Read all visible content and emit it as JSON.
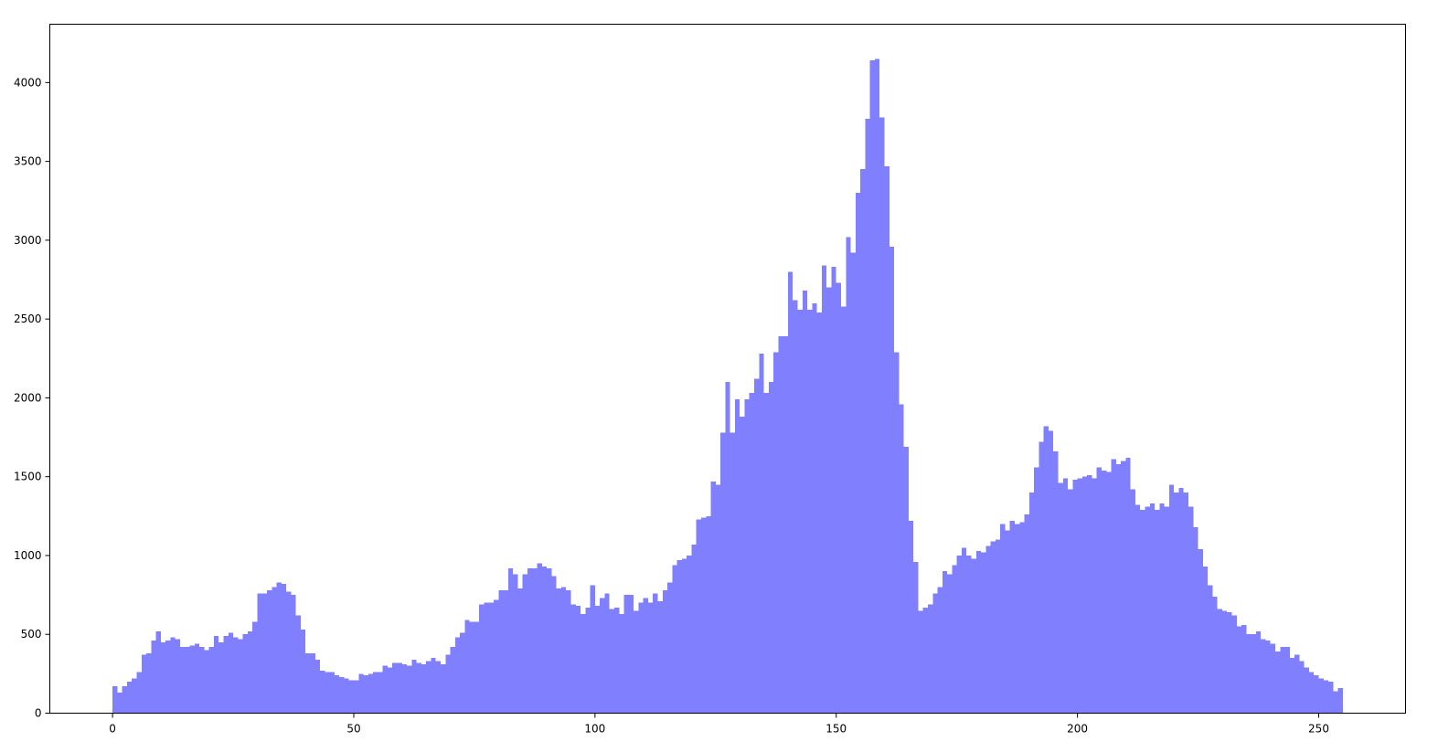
{
  "chart_data": {
    "type": "bar",
    "title": "",
    "xlabel": "",
    "ylabel": "",
    "bar_color": "#8080ff",
    "bin_start": 0,
    "bin_width": 1,
    "xlim": [
      -13,
      268
    ],
    "ylim": [
      0,
      4370
    ],
    "grid": false,
    "legend": "none",
    "xticks": [
      {
        "value": 0,
        "label": "0"
      },
      {
        "value": 50,
        "label": "50"
      },
      {
        "value": 100,
        "label": "100"
      },
      {
        "value": 150,
        "label": "150"
      },
      {
        "value": 200,
        "label": "200"
      },
      {
        "value": 250,
        "label": "250"
      }
    ],
    "yticks": [
      {
        "value": 0,
        "label": "0"
      },
      {
        "value": 500,
        "label": "500"
      },
      {
        "value": 1000,
        "label": "1000"
      },
      {
        "value": 1500,
        "label": "1500"
      },
      {
        "value": 2000,
        "label": "2000"
      },
      {
        "value": 2500,
        "label": "2500"
      },
      {
        "value": 3000,
        "label": "3000"
      },
      {
        "value": 3500,
        "label": "3500"
      },
      {
        "value": 4000,
        "label": "4000"
      }
    ],
    "values": [
      170,
      130,
      170,
      200,
      220,
      260,
      370,
      380,
      460,
      520,
      450,
      460,
      480,
      470,
      420,
      420,
      430,
      440,
      420,
      400,
      420,
      490,
      450,
      490,
      510,
      480,
      470,
      500,
      520,
      580,
      760,
      760,
      780,
      800,
      830,
      820,
      770,
      750,
      620,
      530,
      380,
      380,
      340,
      270,
      260,
      260,
      240,
      230,
      220,
      210,
      210,
      250,
      240,
      250,
      260,
      260,
      300,
      290,
      320,
      320,
      310,
      300,
      340,
      320,
      310,
      330,
      350,
      330,
      310,
      370,
      420,
      480,
      510,
      590,
      580,
      580,
      690,
      700,
      700,
      720,
      780,
      780,
      920,
      880,
      790,
      880,
      920,
      920,
      950,
      930,
      920,
      870,
      790,
      800,
      780,
      690,
      680,
      630,
      670,
      810,
      680,
      730,
      760,
      660,
      670,
      630,
      750,
      750,
      650,
      700,
      730,
      700,
      760,
      710,
      780,
      830,
      940,
      970,
      980,
      1000,
      1070,
      1230,
      1240,
      1250,
      1470,
      1450,
      1780,
      2100,
      1780,
      1990,
      1880,
      1990,
      2030,
      2120,
      2280,
      2030,
      2100,
      2290,
      2390,
      2390,
      2800,
      2620,
      2560,
      2680,
      2560,
      2600,
      2540,
      2840,
      2700,
      2830,
      2730,
      2580,
      3020,
      2920,
      3300,
      3450,
      3770,
      4140,
      4150,
      3780,
      3470,
      2960,
      2290,
      1960,
      1690,
      1220,
      960,
      650,
      670,
      690,
      760,
      800,
      900,
      880,
      940,
      1000,
      1050,
      1000,
      980,
      1030,
      1020,
      1060,
      1090,
      1100,
      1200,
      1160,
      1220,
      1200,
      1210,
      1260,
      1400,
      1560,
      1720,
      1820,
      1790,
      1660,
      1460,
      1490,
      1420,
      1480,
      1490,
      1500,
      1510,
      1490,
      1560,
      1540,
      1530,
      1610,
      1580,
      1600,
      1620,
      1420,
      1320,
      1290,
      1310,
      1330,
      1290,
      1330,
      1310,
      1450,
      1400,
      1430,
      1400,
      1310,
      1180,
      1040,
      930,
      810,
      740,
      660,
      650,
      640,
      620,
      550,
      560,
      500,
      500,
      520,
      470,
      460,
      440,
      390,
      420,
      420,
      350,
      370,
      330,
      290,
      260,
      240,
      220,
      210,
      200,
      140,
      160
    ]
  }
}
